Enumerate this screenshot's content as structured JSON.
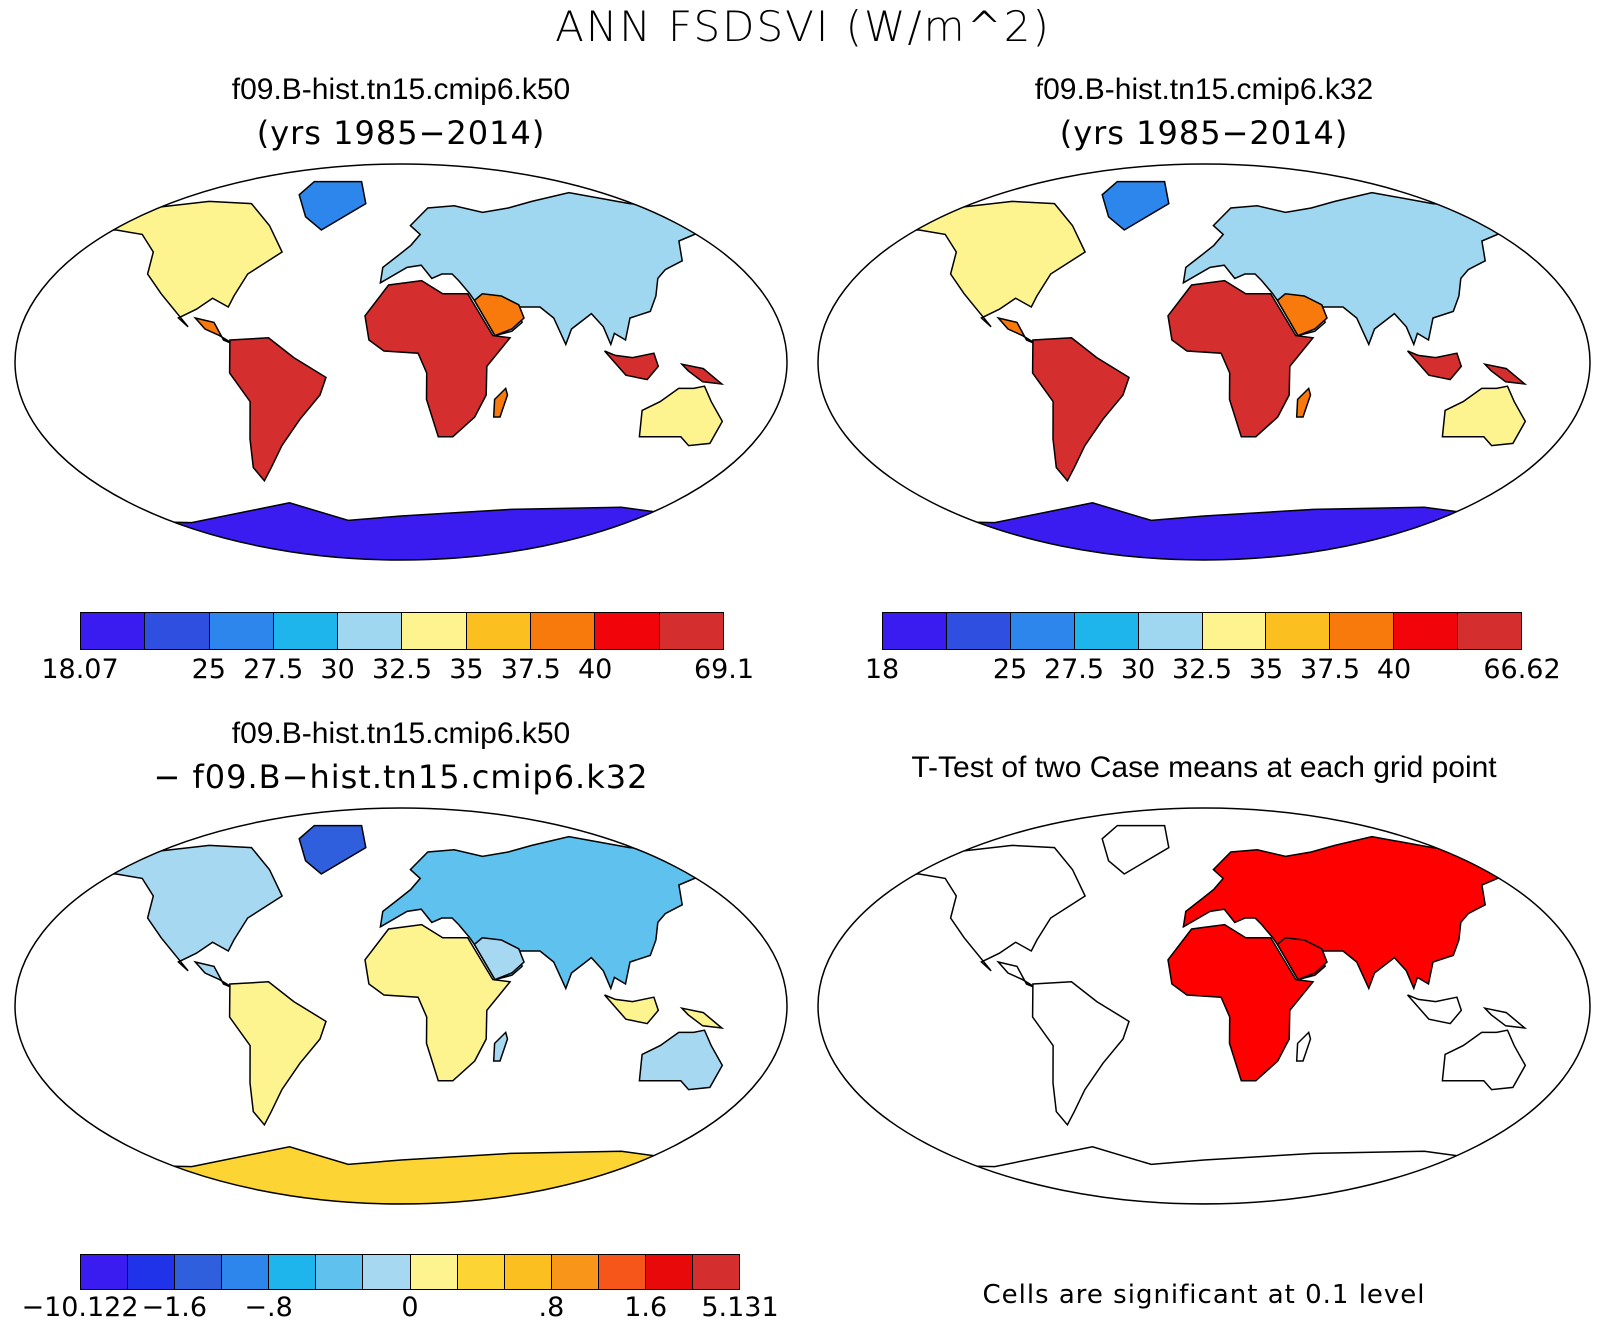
{
  "figure": {
    "title": "ANN FSDSVI (W/m^2)",
    "colors": {
      "land_outline": "#000000",
      "significant": "#ff0000"
    }
  },
  "panels": [
    {
      "id": "case1",
      "title": "f09.B-hist.tn15.cmip6.k50",
      "subtitle": "(yrs 1985−2014)",
      "colorbar": {
        "colors": [
          "#3a1cf0",
          "#2f4fe0",
          "#2c86ec",
          "#1eb4ec",
          "#9fd6f0",
          "#fef48f",
          "#fbbf1f",
          "#f97a0c",
          "#f2050a",
          "#d42e2e"
        ],
        "labels": [
          "18.07",
          "",
          "25",
          "27.5",
          "30",
          "32.5",
          "35",
          "37.5",
          "40",
          "",
          "69.1"
        ]
      },
      "region_fill": {
        "tropics": "#d42e2e",
        "subtropics": "#f97a0c",
        "midlat": "#fef48f",
        "highlat": "#9fd6f0",
        "polar": "#2c86ec",
        "antarctica": "#3a1cf0"
      }
    },
    {
      "id": "case2",
      "title": "f09.B-hist.tn15.cmip6.k32",
      "subtitle": "(yrs 1985−2014)",
      "colorbar": {
        "colors": [
          "#3a1cf0",
          "#2f4fe0",
          "#2c86ec",
          "#1eb4ec",
          "#9fd6f0",
          "#fef48f",
          "#fbbf1f",
          "#f97a0c",
          "#f2050a",
          "#d42e2e"
        ],
        "labels": [
          "18",
          "",
          "25",
          "27.5",
          "30",
          "32.5",
          "35",
          "37.5",
          "40",
          "",
          "66.62"
        ]
      },
      "region_fill": {
        "tropics": "#d42e2e",
        "subtropics": "#f97a0c",
        "midlat": "#fef48f",
        "highlat": "#9fd6f0",
        "polar": "#2c86ec",
        "antarctica": "#3a1cf0"
      }
    },
    {
      "id": "difference",
      "title": "f09.B-hist.tn15.cmip6.k50",
      "subtitle": "− f09.B−hist.tn15.cmip6.k32",
      "colorbar": {
        "colors": [
          "#3a1cf0",
          "#2033e8",
          "#2f5fdc",
          "#2c86ec",
          "#1eb4ec",
          "#5fc2ee",
          "#a6d8f2",
          "#fef48f",
          "#fcd534",
          "#fbbf1f",
          "#f9961a",
          "#f6561a",
          "#e80a0a",
          "#d42e2e"
        ],
        "labels": [
          "−10.122",
          "",
          "−1.6",
          "",
          "−.8",
          "",
          "",
          "0",
          "",
          "",
          ".8",
          "",
          "1.6",
          "",
          "5.131"
        ]
      },
      "region_fill": {
        "tropics": "#fef48f",
        "subtropics": "#a6d8f2",
        "midlat": "#a6d8f2",
        "highlat": "#5fc2ee",
        "polar": "#2f5fdc",
        "antarctica": "#fcd534"
      }
    },
    {
      "id": "ttest",
      "title": "T-Test of two Case means at each grid point",
      "note": "Cells are significant at 0.1 level"
    }
  ]
}
